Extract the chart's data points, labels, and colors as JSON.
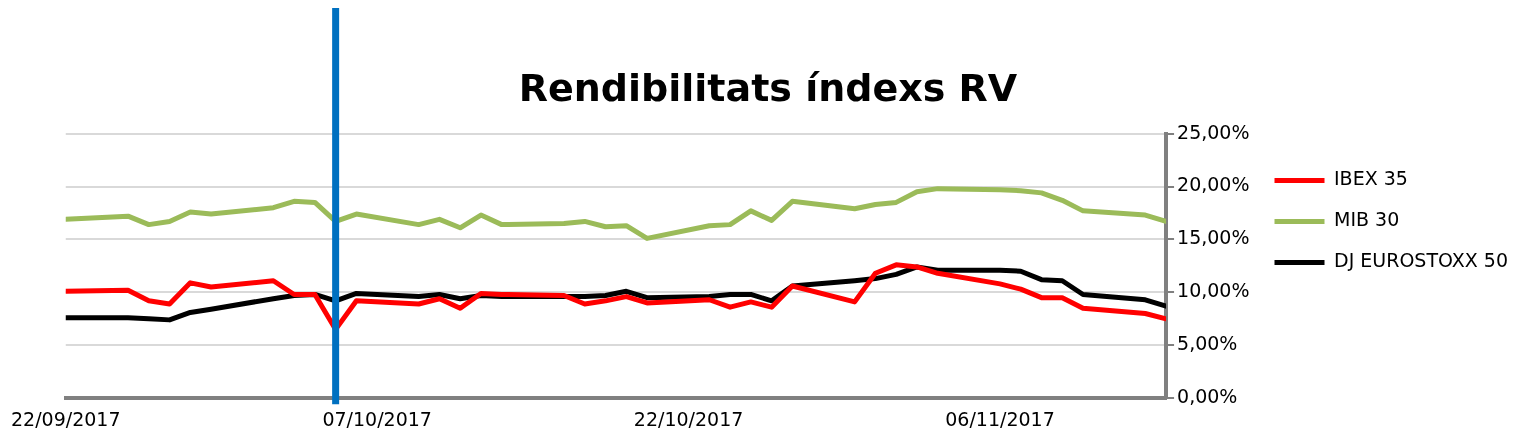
{
  "chart_data": {
    "type": "line",
    "title": "Rendibilitats índexs RV",
    "x": [
      "2017-09-22",
      "2017-09-25",
      "2017-09-26",
      "2017-09-27",
      "2017-09-28",
      "2017-09-29",
      "2017-10-02",
      "2017-10-03",
      "2017-10-04",
      "2017-10-05",
      "2017-10-06",
      "2017-10-09",
      "2017-10-10",
      "2017-10-11",
      "2017-10-12",
      "2017-10-13",
      "2017-10-16",
      "2017-10-17",
      "2017-10-18",
      "2017-10-19",
      "2017-10-20",
      "2017-10-23",
      "2017-10-24",
      "2017-10-25",
      "2017-10-26",
      "2017-10-27",
      "2017-10-30",
      "2017-10-31",
      "2017-11-01",
      "2017-11-02",
      "2017-11-03",
      "2017-11-06",
      "2017-11-07",
      "2017-11-08",
      "2017-11-09",
      "2017-11-10",
      "2017-11-13",
      "2017-11-14"
    ],
    "series": [
      {
        "name": "IBEX 35",
        "color": "#ff0000",
        "values": [
          10.1,
          10.2,
          9.2,
          8.9,
          10.9,
          10.5,
          11.1,
          9.8,
          9.8,
          6.5,
          9.2,
          8.9,
          9.4,
          8.5,
          9.9,
          9.8,
          9.7,
          8.9,
          9.2,
          9.6,
          9.0,
          9.3,
          8.6,
          9.1,
          8.6,
          10.6,
          9.1,
          11.8,
          12.6,
          12.4,
          11.8,
          10.8,
          10.3,
          9.5,
          9.5,
          8.5,
          8.0,
          7.5
        ]
      },
      {
        "name": "MIB 30",
        "color": "#9bbb59",
        "values": [
          16.9,
          17.2,
          16.4,
          16.7,
          17.6,
          17.4,
          18.0,
          18.6,
          18.5,
          16.7,
          17.4,
          16.4,
          16.9,
          16.1,
          17.3,
          16.4,
          16.5,
          16.7,
          16.2,
          16.3,
          15.1,
          16.3,
          16.4,
          17.7,
          16.8,
          18.6,
          17.9,
          18.3,
          18.5,
          19.5,
          19.8,
          19.7,
          19.6,
          19.4,
          18.7,
          17.7,
          17.3,
          16.7
        ]
      },
      {
        "name": "DJ EUROSTOXX 50",
        "color": "#000000",
        "values": [
          7.6,
          7.6,
          7.5,
          7.4,
          8.1,
          8.4,
          9.4,
          9.7,
          9.8,
          9.2,
          9.9,
          9.6,
          9.8,
          9.4,
          9.7,
          9.6,
          9.6,
          9.6,
          9.7,
          10.1,
          9.5,
          9.6,
          9.8,
          9.8,
          9.2,
          10.6,
          11.1,
          11.3,
          11.7,
          12.4,
          12.1,
          12.1,
          12.0,
          11.2,
          11.1,
          9.8,
          9.3,
          8.7
        ]
      }
    ],
    "xlim": [
      "2017-09-22",
      "2017-11-14"
    ],
    "xticks": [
      {
        "value": "2017-09-22",
        "label": "22/09/2017"
      },
      {
        "value": "2017-10-07",
        "label": "07/10/2017"
      },
      {
        "value": "2017-10-22",
        "label": "22/10/2017"
      },
      {
        "value": "2017-11-06",
        "label": "06/11/2017"
      }
    ],
    "ylim": [
      0,
      25
    ],
    "yticks": [
      {
        "value": 0,
        "label": "0,00%"
      },
      {
        "value": 5,
        "label": "5,00%"
      },
      {
        "value": 10,
        "label": "10,00%"
      },
      {
        "value": 15,
        "label": "15,00%"
      },
      {
        "value": 20,
        "label": "20,00%"
      },
      {
        "value": 25,
        "label": "25,00%"
      }
    ],
    "ref_lines": [
      {
        "axis": "x",
        "value": "2017-10-05",
        "color": "#0070c0"
      }
    ],
    "grid": "y",
    "legend": "right",
    "marker": "none",
    "line_style": "solid"
  }
}
